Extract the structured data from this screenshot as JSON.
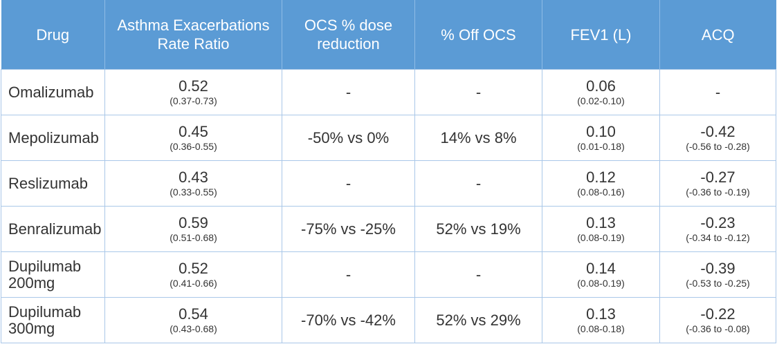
{
  "chart_data": {
    "type": "table",
    "columns": [
      "Drug",
      "Asthma Exacerbations Rate Ratio",
      "OCS % dose reduction",
      "% Off OCS",
      "FEV1 (L)",
      "ACQ"
    ],
    "rows": [
      {
        "drug": "Omalizumab",
        "rate_ratio": "0.52",
        "rate_ratio_ci": "0.37-0.73",
        "ocs_reduction": "-",
        "off_ocs": "-",
        "fev1": "0.06",
        "fev1_ci": "0.02-0.10",
        "acq": "-",
        "acq_ci": ""
      },
      {
        "drug": "Mepolizumab",
        "rate_ratio": "0.45",
        "rate_ratio_ci": "0.36-0.55",
        "ocs_reduction": "-50% vs 0%",
        "off_ocs": "14% vs 8%",
        "fev1": "0.10",
        "fev1_ci": "0.01-0.18",
        "acq": "-0.42",
        "acq_ci": "-0.56 to -0.28"
      },
      {
        "drug": "Reslizumab",
        "rate_ratio": "0.43",
        "rate_ratio_ci": "0.33-0.55",
        "ocs_reduction": "-",
        "off_ocs": "-",
        "fev1": "0.12",
        "fev1_ci": "0.08-0.16",
        "acq": "-0.27",
        "acq_ci": "-0.36 to -0.19"
      },
      {
        "drug": "Benralizumab",
        "rate_ratio": "0.59",
        "rate_ratio_ci": "0.51-0.68",
        "ocs_reduction": "-75% vs -25%",
        "off_ocs": "52% vs 19%",
        "fev1": "0.13",
        "fev1_ci": "0.08-0.19",
        "acq": "-0.23",
        "acq_ci": "-0.34 to -0.12"
      },
      {
        "drug": "Dupilumab 200mg",
        "rate_ratio": "0.52",
        "rate_ratio_ci": "0.41-0.66",
        "ocs_reduction": "-",
        "off_ocs": "-",
        "fev1": "0.14",
        "fev1_ci": "0.08-0.19",
        "acq": "-0.39",
        "acq_ci": "-0.53 to -0.25"
      },
      {
        "drug": "Dupilumab 300mg",
        "rate_ratio": "0.54",
        "rate_ratio_ci": "0.43-0.68",
        "ocs_reduction": "-70% vs -42%",
        "off_ocs": "52% vs 29%",
        "fev1": "0.13",
        "fev1_ci": "0.08-0.18",
        "acq": "-0.22",
        "acq_ci": "-0.36 to -0.08"
      }
    ]
  },
  "colors": {
    "header_background": "#5b9bd5",
    "header_text": "#ffffff",
    "grid_line": "#a9c7e8",
    "body_text": "#333333"
  }
}
